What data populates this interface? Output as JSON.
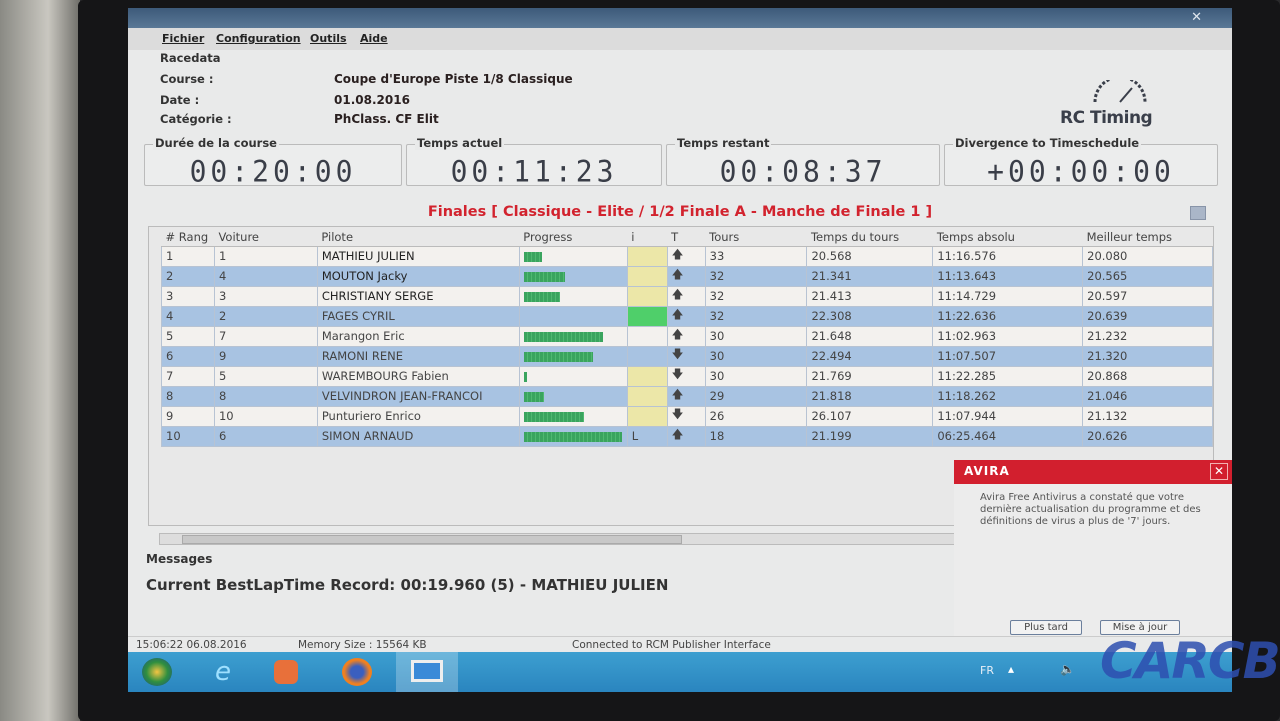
{
  "menu": [
    "Fichier",
    "Configuration",
    "Outils",
    "Aide"
  ],
  "racedata": {
    "title": "Racedata",
    "course_label": "Course :",
    "course": "Coupe d'Europe Piste 1/8 Classique",
    "date_label": "Date :",
    "date": "01.08.2016",
    "categorie_label": "Catégorie :",
    "categorie": "PhClass. CF Elit"
  },
  "logo": "RC Timing",
  "clocks": [
    {
      "label": "Durée de la course",
      "value": "00:20:00"
    },
    {
      "label": "Temps actuel",
      "value": "00:11:23"
    },
    {
      "label": "Temps restant",
      "value": "00:08:37"
    },
    {
      "label": "Divergence to Timeschedule",
      "value": "+00:00:00"
    }
  ],
  "heat_title": "Finales  [ Classique - Elite / 1/2 Finale A - Manche de Finale 1 ]",
  "table": {
    "headers": [
      "# Rang",
      "Voiture",
      "Pilote",
      "Progress",
      "i",
      "T",
      "Tours",
      "Temps du tours",
      "Temps absolu",
      "Meilleur temps"
    ],
    "rows": [
      {
        "rang": "1",
        "voiture": "1",
        "pilote": "MATHIEU JULIEN",
        "progress": 0.18,
        "i": "",
        "i_state": "yellow",
        "trend": "up",
        "tours": "33",
        "tour": "20.568",
        "absolu": "11:16.576",
        "best": "20.080"
      },
      {
        "rang": "2",
        "voiture": "4",
        "pilote": "MOUTON Jacky",
        "progress": 0.41,
        "i": "",
        "i_state": "yellow",
        "trend": "up",
        "tours": "32",
        "tour": "21.341",
        "absolu": "11:13.643",
        "best": "20.565"
      },
      {
        "rang": "3",
        "voiture": "3",
        "pilote": "CHRISTIANY SERGE",
        "progress": 0.36,
        "i": "",
        "i_state": "yellow",
        "trend": "up",
        "tours": "32",
        "tour": "21.413",
        "absolu": "11:14.729",
        "best": "20.597"
      },
      {
        "rang": "4",
        "voiture": "2",
        "pilote": "FAGES CYRIL",
        "progress": 0,
        "i": "",
        "i_state": "green",
        "trend": "up",
        "tours": "32",
        "tour": "22.308",
        "absolu": "11:22.636",
        "best": "20.639"
      },
      {
        "rang": "5",
        "voiture": "7",
        "pilote": "Marangon Eric",
        "progress": 0.79,
        "i": "",
        "i_state": "none",
        "trend": "up",
        "tours": "30",
        "tour": "21.648",
        "absolu": "11:02.963",
        "best": "21.232"
      },
      {
        "rang": "6",
        "voiture": "9",
        "pilote": "RAMONI RENE",
        "progress": 0.69,
        "i": "",
        "i_state": "none",
        "trend": "down",
        "tours": "30",
        "tour": "22.494",
        "absolu": "11:07.507",
        "best": "21.320"
      },
      {
        "rang": "7",
        "voiture": "5",
        "pilote": "WAREMBOURG Fabien",
        "progress": 0.03,
        "i": "",
        "i_state": "yellow",
        "trend": "down",
        "tours": "30",
        "tour": "21.769",
        "absolu": "11:22.285",
        "best": "20.868"
      },
      {
        "rang": "8",
        "voiture": "8",
        "pilote": "VELVINDRON JEAN-FRANCOI",
        "progress": 0.2,
        "i": "",
        "i_state": "yellow",
        "trend": "up",
        "tours": "29",
        "tour": "21.818",
        "absolu": "11:18.262",
        "best": "21.046"
      },
      {
        "rang": "9",
        "voiture": "10",
        "pilote": "Punturiero Enrico",
        "progress": 0.6,
        "i": "",
        "i_state": "yellow",
        "trend": "down",
        "tours": "26",
        "tour": "26.107",
        "absolu": "11:07.944",
        "best": "21.132"
      },
      {
        "rang": "10",
        "voiture": "6",
        "pilote": "SIMON ARNAUD",
        "progress": 0.98,
        "i": "L",
        "i_state": "none",
        "trend": "up",
        "tours": "18",
        "tour": "21.199",
        "absolu": "06:25.464",
        "best": "20.626"
      }
    ]
  },
  "messages": {
    "title": "Messages",
    "text": "Current BestLapTime Record:  00:19.960 (5)  -  MATHIEU JULIEN"
  },
  "status": {
    "datetime": "15:06:22  06.08.2016",
    "memory": "Memory Size : 15564 KB",
    "connection": "Connected to RCM Publisher Interface"
  },
  "avira": {
    "brand": "AVIRA",
    "text": "Avira Free Antivirus a constaté que votre dernière actualisation du programme et des définitions de virus a plus de '7' jours.",
    "later": "Plus tard",
    "update": "Mise à jour"
  },
  "tray": {
    "lang": "FR"
  },
  "watermark": "CARCB",
  "colors": {
    "accent_red": "#d2232e",
    "row_alt": "#a8c3e2",
    "progress": "#3aa45e",
    "taskbar": "#2a85bf"
  }
}
